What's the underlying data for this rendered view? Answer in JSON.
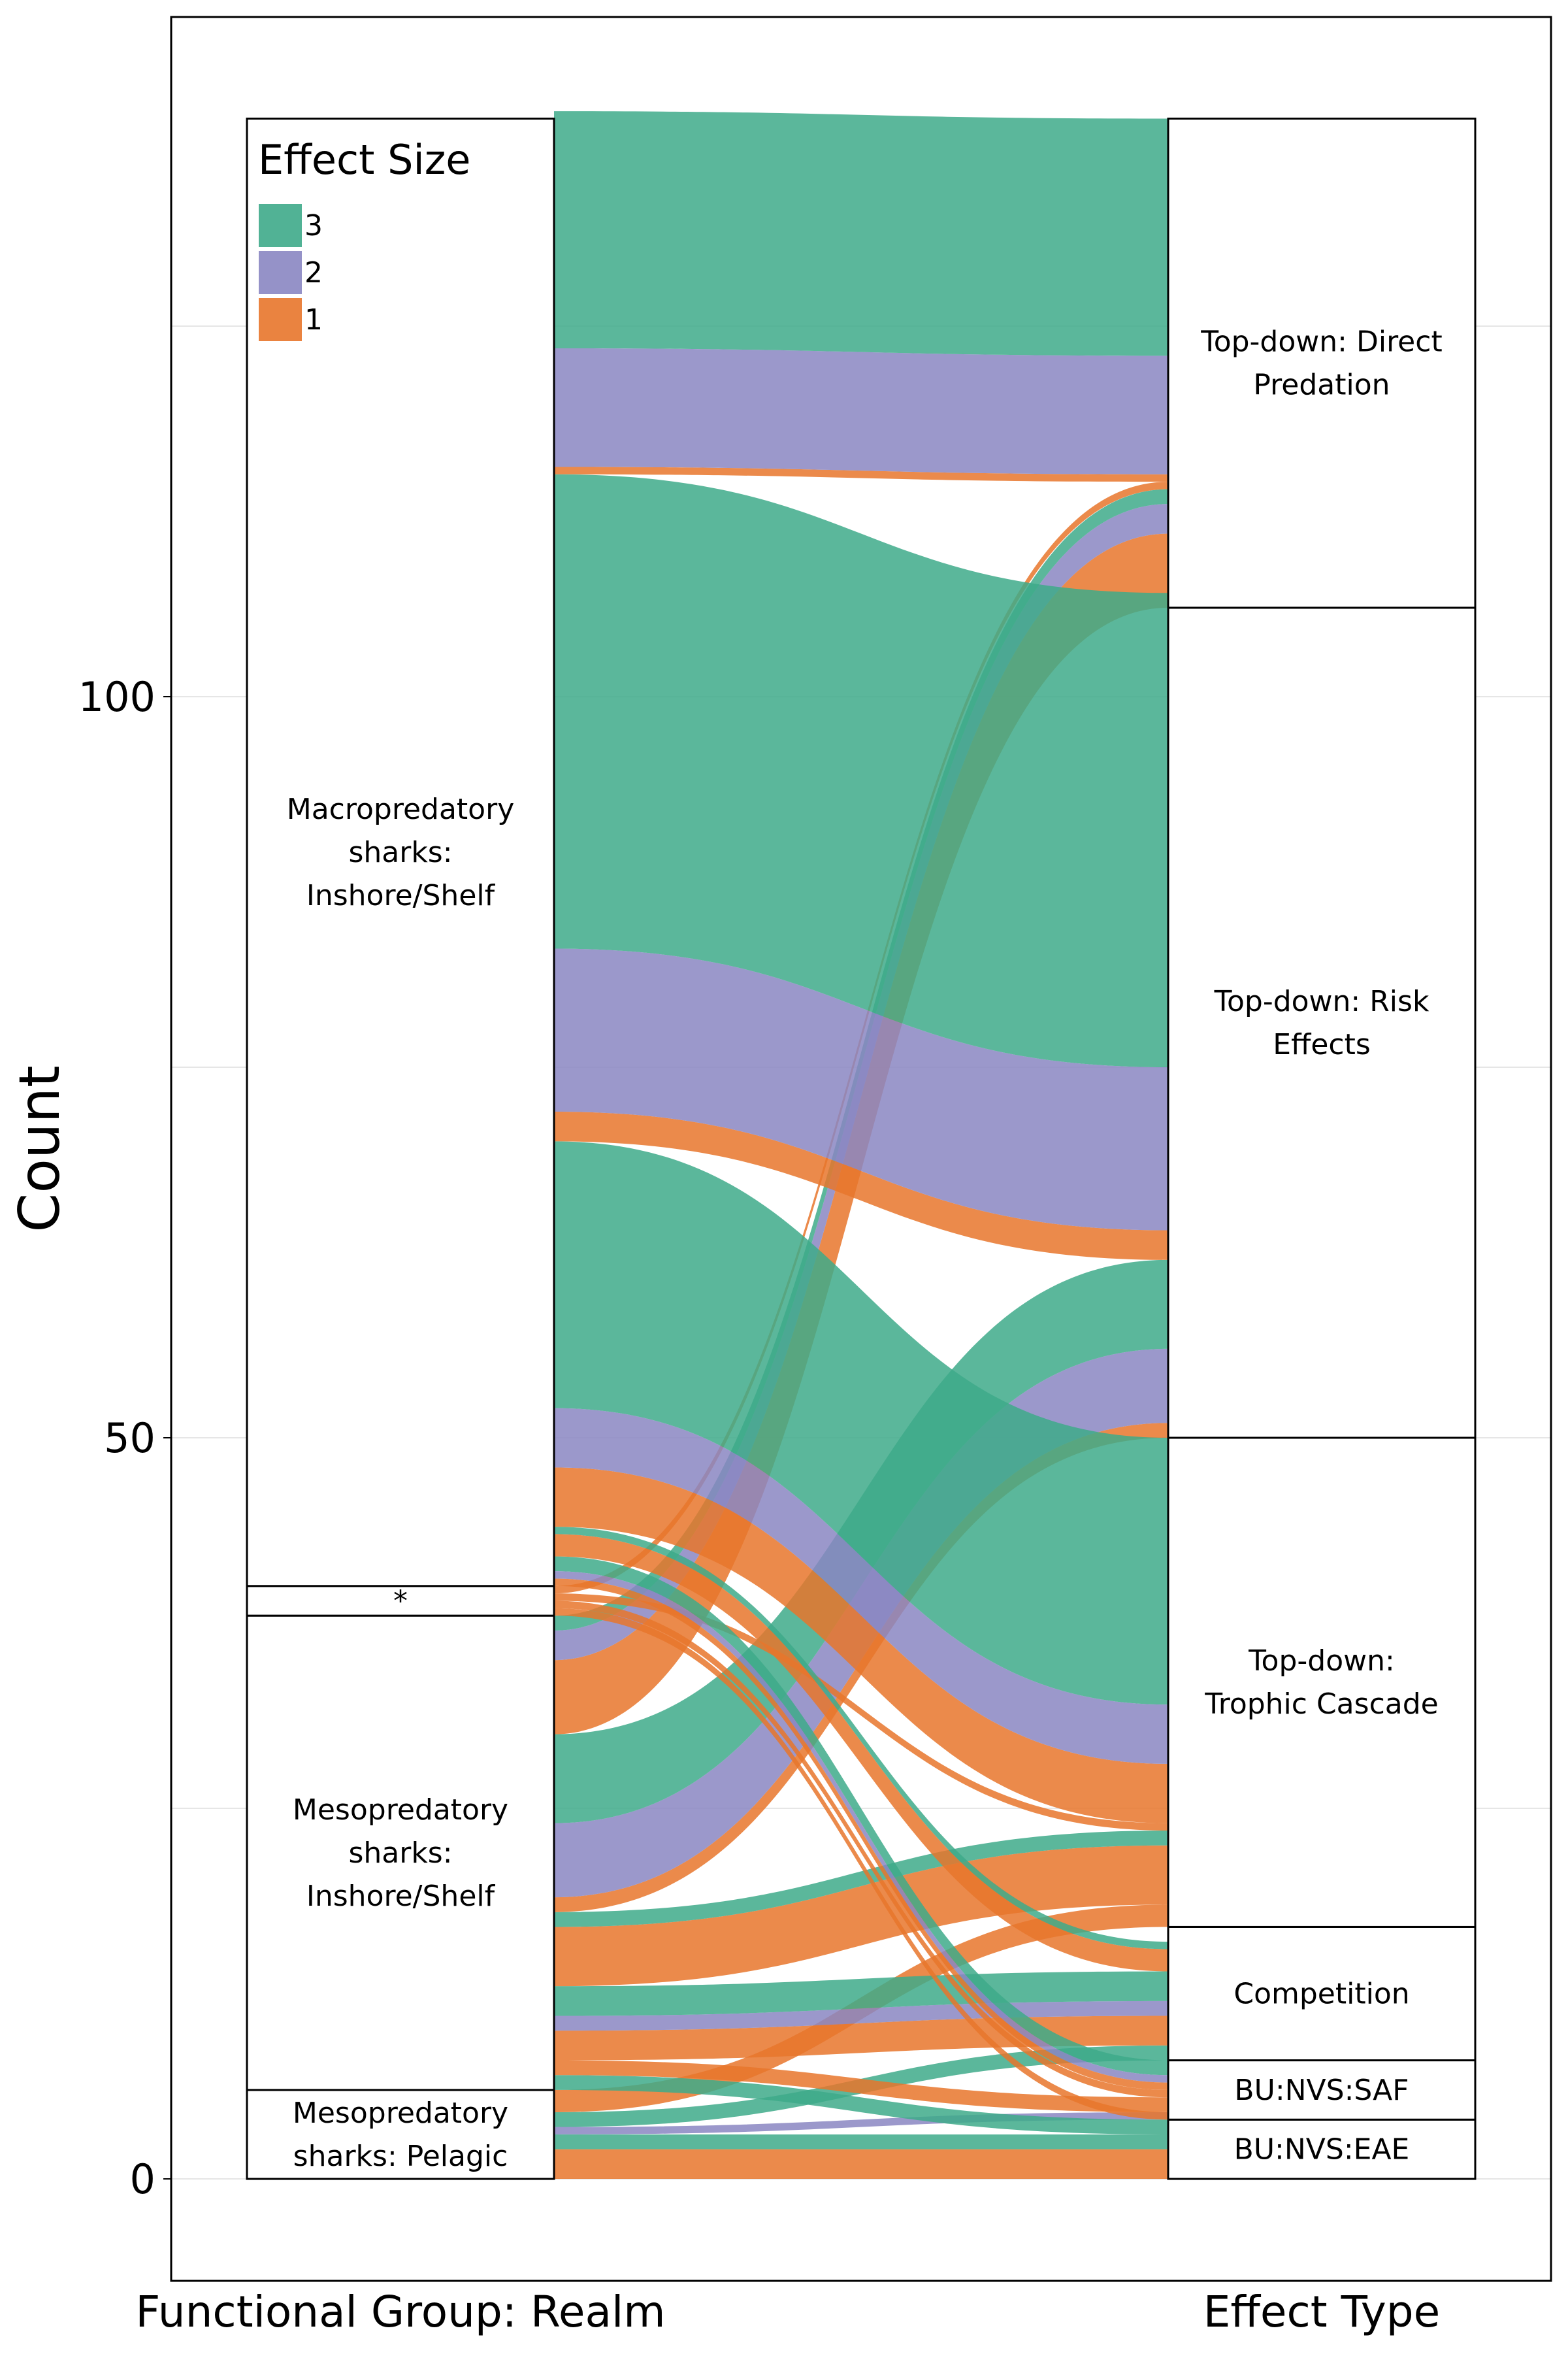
{
  "chart_data": {
    "type": "alluvial",
    "title": "",
    "ylabel": "Count",
    "ylim": [
      -7,
      147
    ],
    "y_ticks": [
      0,
      50,
      100
    ],
    "grid": true,
    "axes": [
      {
        "name": "Functional Group: Realm",
        "strata": [
          "Mesopredatory sharks: Pelagic",
          "Mesopredatory sharks: Inshore/Shelf",
          "*",
          "Macropredatory sharks: Inshore/Shelf"
        ]
      },
      {
        "name": "Effect Type",
        "strata": [
          "BU:NVS:EAE",
          "BU:NVS:SAF",
          "Competition",
          "Top-down: Trophic Cascade",
          "Top-down: Risk Effects",
          "Top-down: Direct Predation"
        ]
      }
    ],
    "left_strata": [
      {
        "label": "Mesopredatory sharks: Pelagic",
        "lines": [
          "Mesopredatory",
          "sharks: Pelagic"
        ],
        "count": 6
      },
      {
        "label": "Mesopredatory sharks: Inshore/Shelf",
        "lines": [
          "Mesopredatory",
          "sharks:",
          "Inshore/Shelf"
        ],
        "count": 32
      },
      {
        "label": "*",
        "lines": [
          "*"
        ],
        "count": 2
      },
      {
        "label": "Macropredatory sharks: Inshore/Shelf",
        "lines": [
          "Macropredatory",
          "sharks:",
          "Inshore/Shelf"
        ],
        "count": 99
      }
    ],
    "right_strata": [
      {
        "label": "BU:NVS:EAE",
        "lines": [
          "BU:NVS:EAE"
        ],
        "count": 4
      },
      {
        "label": "BU:NVS:SAF",
        "lines": [
          "BU:NVS:SAF"
        ],
        "count": 4
      },
      {
        "label": "Competition",
        "lines": [
          "Competition"
        ],
        "count": 9
      },
      {
        "label": "Top-down: Trophic Cascade",
        "lines": [
          "Top-down:",
          "Trophic Cascade"
        ],
        "count": 33
      },
      {
        "label": "Top-down: Risk Effects",
        "lines": [
          "Top-down: Risk",
          "Effects"
        ],
        "count": 56
      },
      {
        "label": "Top-down: Direct Predation",
        "lines": [
          "Top-down: Direct",
          "Predation"
        ],
        "count": 33
      }
    ],
    "legend": {
      "title": "Effect Size",
      "entries": [
        {
          "label": "3",
          "color": "#3eaa8a"
        },
        {
          "label": "2",
          "color": "#8a86c2"
        },
        {
          "label": "1",
          "color": "#e8762b"
        }
      ],
      "position": "top-left"
    },
    "flows": [
      {
        "from": "Mesopredatory sharks: Pelagic",
        "to": "BU:NVS:EAE",
        "effect_size": 1,
        "count": 2
      },
      {
        "from": "Mesopredatory sharks: Pelagic",
        "to": "BU:NVS:EAE",
        "effect_size": 3,
        "count": 1
      },
      {
        "from": "Mesopredatory sharks: Pelagic",
        "to": "Competition",
        "effect_size": 3,
        "count": 1
      },
      {
        "from": "Mesopredatory sharks: Pelagic",
        "to": "BU:NVS:SAF",
        "effect_size": 2,
        "count": 0.5
      },
      {
        "from": "Mesopredatory sharks: Pelagic",
        "to": "Top-down: Trophic Cascade",
        "effect_size": 1,
        "count": 1.5
      },
      {
        "from": "Mesopredatory sharks: Inshore/Shelf",
        "to": "BU:NVS:EAE",
        "effect_size": 3,
        "count": 1
      },
      {
        "from": "Mesopredatory sharks: Inshore/Shelf",
        "to": "BU:NVS:SAF",
        "effect_size": 1,
        "count": 1
      },
      {
        "from": "Mesopredatory sharks: Inshore/Shelf",
        "to": "Competition",
        "effect_size": 1,
        "count": 2
      },
      {
        "from": "Mesopredatory sharks: Inshore/Shelf",
        "to": "Competition",
        "effect_size": 2,
        "count": 1
      },
      {
        "from": "Mesopredatory sharks: Inshore/Shelf",
        "to": "Competition",
        "effect_size": 3,
        "count": 2
      },
      {
        "from": "Mesopredatory sharks: Inshore/Shelf",
        "to": "Top-down: Trophic Cascade",
        "effect_size": 1,
        "count": 4
      },
      {
        "from": "Mesopredatory sharks: Inshore/Shelf",
        "to": "Top-down: Trophic Cascade",
        "effect_size": 3,
        "count": 1
      },
      {
        "from": "Mesopredatory sharks: Inshore/Shelf",
        "to": "Top-down: Risk Effects",
        "effect_size": 1,
        "count": 1
      },
      {
        "from": "Mesopredatory sharks: Inshore/Shelf",
        "to": "Top-down: Risk Effects",
        "effect_size": 2,
        "count": 5
      },
      {
        "from": "Mesopredatory sharks: Inshore/Shelf",
        "to": "Top-down: Risk Effects",
        "effect_size": 3,
        "count": 6
      },
      {
        "from": "Mesopredatory sharks: Inshore/Shelf",
        "to": "Top-down: Direct Predation",
        "effect_size": 1,
        "count": 5
      },
      {
        "from": "Mesopredatory sharks: Inshore/Shelf",
        "to": "Top-down: Direct Predation",
        "effect_size": 2,
        "count": 2
      },
      {
        "from": "Mesopredatory sharks: Inshore/Shelf",
        "to": "Top-down: Direct Predation",
        "effect_size": 3,
        "count": 1
      },
      {
        "from": "*",
        "to": "BU:NVS:EAE",
        "effect_size": 1,
        "count": 0.5
      },
      {
        "from": "*",
        "to": "BU:NVS:SAF",
        "effect_size": 1,
        "count": 0.5
      },
      {
        "from": "*",
        "to": "Top-down: Trophic Cascade",
        "effect_size": 1,
        "count": 0.5
      },
      {
        "from": "*",
        "to": "Top-down: Direct Predation",
        "effect_size": 1,
        "count": 0.5
      },
      {
        "from": "Macropredatory sharks: Inshore/Shelf",
        "to": "BU:NVS:SAF",
        "effect_size": 3,
        "count": 1
      },
      {
        "from": "Macropredatory sharks: Inshore/Shelf",
        "to": "BU:NVS:SAF",
        "effect_size": 2,
        "count": 0.5
      },
      {
        "from": "Macropredatory sharks: Inshore/Shelf",
        "to": "BU:NVS:SAF",
        "effect_size": 1,
        "count": 0.5
      },
      {
        "from": "Macropredatory sharks: Inshore/Shelf",
        "to": "Competition",
        "effect_size": 1,
        "count": 1.5
      },
      {
        "from": "Macropredatory sharks: Inshore/Shelf",
        "to": "Competition",
        "effect_size": 3,
        "count": 0.5
      },
      {
        "from": "Macropredatory sharks: Inshore/Shelf",
        "to": "Top-down: Trophic Cascade",
        "effect_size": 1,
        "count": 4
      },
      {
        "from": "Macropredatory sharks: Inshore/Shelf",
        "to": "Top-down: Trophic Cascade",
        "effect_size": 2,
        "count": 4
      },
      {
        "from": "Macropredatory sharks: Inshore/Shelf",
        "to": "Top-down: Trophic Cascade",
        "effect_size": 3,
        "count": 18
      },
      {
        "from": "Macropredatory sharks: Inshore/Shelf",
        "to": "Top-down: Risk Effects",
        "effect_size": 1,
        "count": 2
      },
      {
        "from": "Macropredatory sharks: Inshore/Shelf",
        "to": "Top-down: Risk Effects",
        "effect_size": 2,
        "count": 11
      },
      {
        "from": "Macropredatory sharks: Inshore/Shelf",
        "to": "Top-down: Risk Effects",
        "effect_size": 3,
        "count": 32
      },
      {
        "from": "Macropredatory sharks: Inshore/Shelf",
        "to": "Top-down: Direct Predation",
        "effect_size": 1,
        "count": 0.5
      },
      {
        "from": "Macropredatory sharks: Inshore/Shelf",
        "to": "Top-down: Direct Predation",
        "effect_size": 2,
        "count": 8
      },
      {
        "from": "Macropredatory sharks: Inshore/Shelf",
        "to": "Top-down: Direct Predation",
        "effect_size": 3,
        "count": 16
      }
    ]
  }
}
